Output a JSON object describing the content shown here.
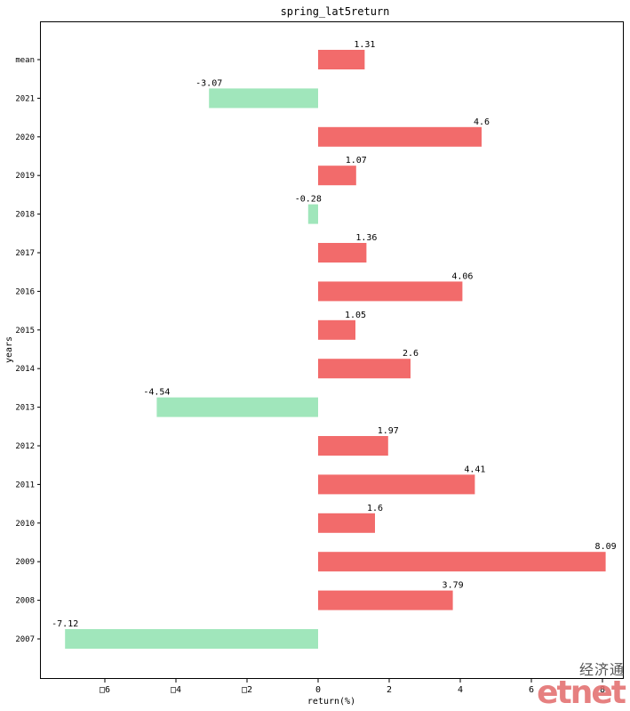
{
  "chart_data": {
    "type": "bar",
    "orientation": "horizontal",
    "title": "spring_lat5return",
    "xlabel": "return(%)",
    "ylabel": "years",
    "categories": [
      "mean",
      "2021",
      "2020",
      "2019",
      "2018",
      "2017",
      "2016",
      "2015",
      "2014",
      "2013",
      "2012",
      "2011",
      "2010",
      "2009",
      "2008",
      "2007"
    ],
    "values": [
      1.31,
      -3.07,
      4.6,
      1.07,
      -0.28,
      1.36,
      4.06,
      1.05,
      2.6,
      -4.54,
      1.97,
      4.41,
      1.6,
      8.09,
      3.79,
      -7.12
    ],
    "value_labels": [
      "1.31",
      "-3.07",
      "4.6",
      "1.07",
      "-0.28",
      "1.36",
      "4.06",
      "1.05",
      "2.6",
      "-4.54",
      "1.97",
      "4.41",
      "1.6",
      "8.09",
      "3.79",
      "-7.12"
    ],
    "xlim": [
      -7.8,
      8.6
    ],
    "xticks": [
      -6,
      -4,
      -2,
      0,
      2,
      4,
      6,
      8
    ],
    "xtick_labels": [
      "□6",
      "□4",
      "□2",
      "0",
      "2",
      "4",
      "6",
      "8"
    ],
    "positive_color": "#f26b6b",
    "negative_color": "#a0e6bb",
    "grid": false,
    "legend": "none"
  },
  "watermark": {
    "chinese": "经济通",
    "latin": "etnet"
  }
}
